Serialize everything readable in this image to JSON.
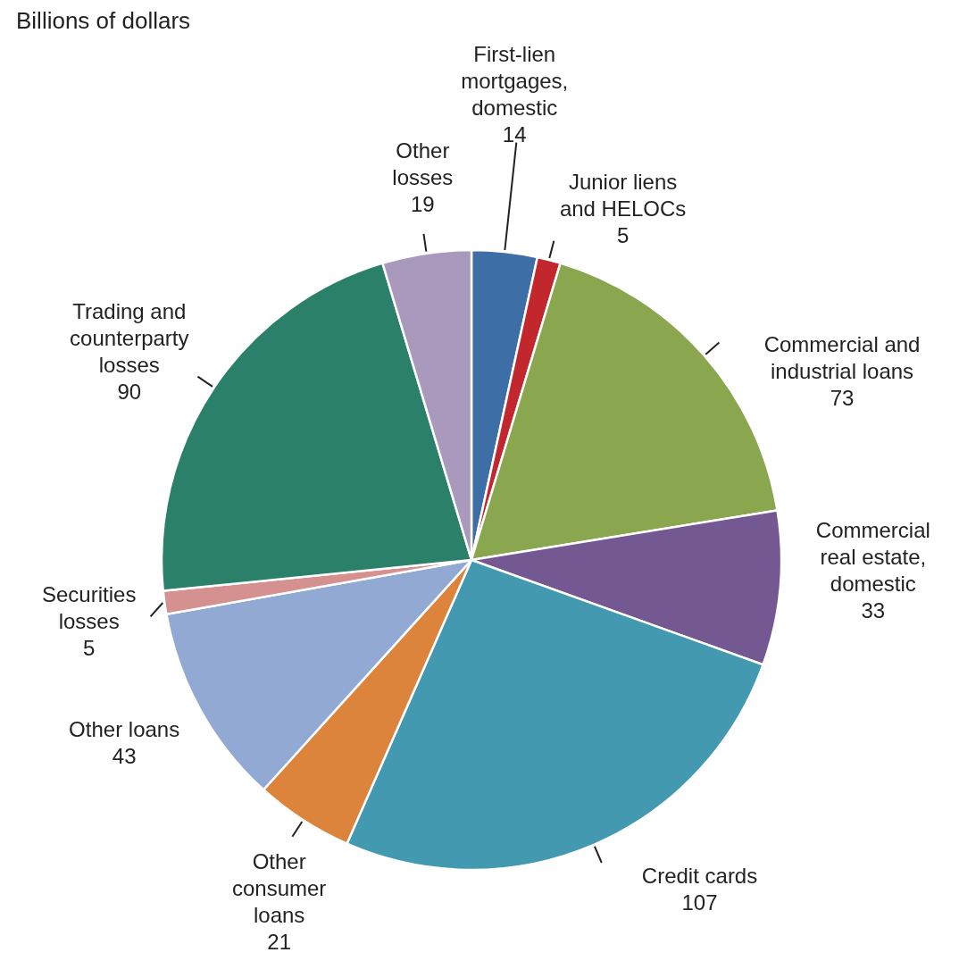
{
  "chart_data": {
    "type": "pie",
    "title": "Billions of dollars",
    "categories": [
      "First-lien mortgages, domestic",
      "Junior liens and HELOCs",
      "Commercial and industrial loans",
      "Commercial real estate, domestic",
      "Credit cards",
      "Other consumer loans",
      "Other loans",
      "Securities losses",
      "Trading and counterparty losses",
      "Other losses"
    ],
    "values": [
      14,
      5,
      73,
      33,
      107,
      21,
      43,
      5,
      90,
      19
    ],
    "colors": [
      "#3d6fa6",
      "#c1272d",
      "#8aa64e",
      "#735891",
      "#4299b0",
      "#dc843b",
      "#92a9d3",
      "#d49190",
      "#2a8068",
      "#a899bd"
    ],
    "data_labels": true,
    "legend": false
  }
}
